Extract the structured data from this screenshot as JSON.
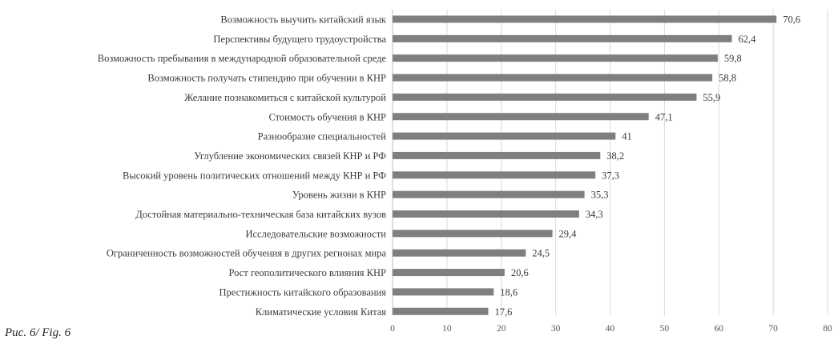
{
  "caption": "Рис. 6/ Fig. 6",
  "colors": {
    "bar": "#7f7f7f",
    "grid": "#d9d9d9",
    "axis": "#bfbfbf"
  },
  "chart_data": {
    "type": "bar",
    "orientation": "horizontal",
    "categories": [
      "Возможность выучить китайский язык",
      "Перспективы будущего трудоустройства",
      "Возможность пребывания в международной образовательной среде",
      "Возможность получать стипендию при обучении в КНР",
      "Желание познакомиться с китайской культурой",
      "Стоимость обучения в КНР",
      "Разнообразие специальностей",
      "Углубление экономических связей КНР и РФ",
      "Высокий уровень политических отношений между КНР и РФ",
      "Уровень жизни в КНР",
      "Достойная материально-техническая база китайских вузов",
      "Исследовательские возможности",
      "Ограниченность возможностей обучения в других регионах мира",
      "Рост геополитического влияния КНР",
      "Престижность китайского образования",
      "Климатические условия Китая"
    ],
    "values": [
      70.6,
      62.4,
      59.8,
      58.8,
      55.9,
      47.1,
      41,
      38.2,
      37.3,
      35.3,
      34.3,
      29.4,
      24.5,
      20.6,
      18.6,
      17.6
    ],
    "value_labels": [
      "70,6",
      "62,4",
      "59,8",
      "58,8",
      "55,9",
      "47,1",
      "41",
      "38,2",
      "37,3",
      "35,3",
      "34,3",
      "29,4",
      "24,5",
      "20,6",
      "18,6",
      "17,6"
    ],
    "xlim": [
      0,
      80
    ],
    "x_ticks": [
      0,
      10,
      20,
      30,
      40,
      50,
      60,
      70,
      80
    ],
    "grid": true,
    "legend": "none"
  }
}
